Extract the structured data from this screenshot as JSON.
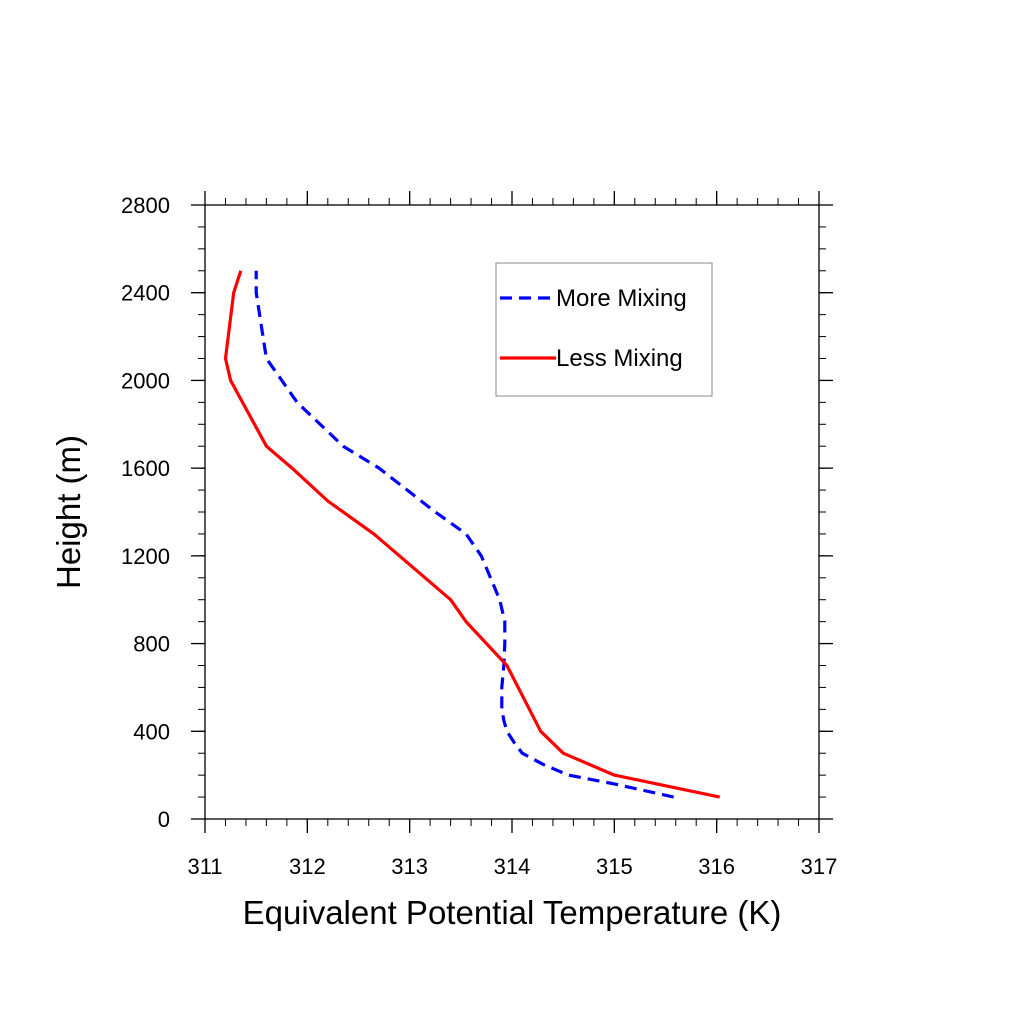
{
  "chart_data": {
    "type": "line",
    "title": "",
    "xlabel": "Equivalent Potential Temperature (K)",
    "ylabel": "Height (m)",
    "xlim": [
      311,
      317
    ],
    "ylim": [
      0,
      2800
    ],
    "xticks": [
      "311",
      "312",
      "313",
      "314",
      "315",
      "316",
      "317"
    ],
    "yticks": [
      "0",
      "400",
      "800",
      "1200",
      "1600",
      "2000",
      "2400",
      "2800"
    ],
    "grid": false,
    "legend_position": "top-right",
    "series": [
      {
        "name": "More Mixing",
        "color": "#0000ff",
        "style": "dashed",
        "points": [
          [
            315.58,
            100
          ],
          [
            315.0,
            160
          ],
          [
            314.55,
            200
          ],
          [
            314.3,
            250
          ],
          [
            314.1,
            300
          ],
          [
            314.02,
            350
          ],
          [
            313.95,
            400
          ],
          [
            313.92,
            450
          ],
          [
            313.9,
            500
          ],
          [
            313.9,
            600
          ],
          [
            313.92,
            700
          ],
          [
            313.93,
            800
          ],
          [
            313.93,
            900
          ],
          [
            313.88,
            1000
          ],
          [
            313.7,
            1200
          ],
          [
            313.55,
            1300
          ],
          [
            313.25,
            1400
          ],
          [
            312.7,
            1600
          ],
          [
            312.35,
            1700
          ],
          [
            311.9,
            1900
          ],
          [
            311.75,
            2000
          ],
          [
            311.6,
            2100
          ],
          [
            311.5,
            2400
          ],
          [
            311.5,
            2500
          ]
        ]
      },
      {
        "name": "Less Mixing",
        "color": "#ff0000",
        "style": "solid",
        "points": [
          [
            316.03,
            100
          ],
          [
            315.0,
            200
          ],
          [
            314.5,
            300
          ],
          [
            314.28,
            400
          ],
          [
            313.95,
            700
          ],
          [
            313.55,
            900
          ],
          [
            313.4,
            1000
          ],
          [
            312.65,
            1300
          ],
          [
            312.2,
            1450
          ],
          [
            311.85,
            1600
          ],
          [
            311.6,
            1700
          ],
          [
            311.25,
            2000
          ],
          [
            311.2,
            2100
          ],
          [
            311.28,
            2400
          ],
          [
            311.35,
            2500
          ]
        ]
      }
    ]
  }
}
